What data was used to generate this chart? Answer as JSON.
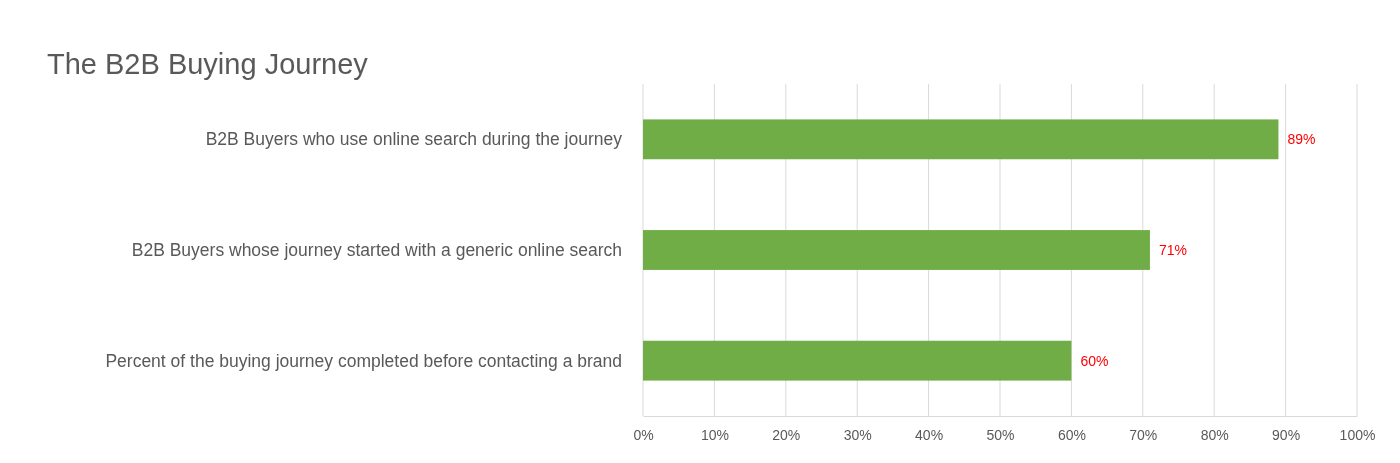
{
  "chart_data": {
    "type": "bar",
    "orientation": "horizontal",
    "title": "The B2B Buying Journey",
    "categories": [
      "B2B Buyers who use online search during the journey",
      "B2B Buyers whose journey started with a generic online search",
      "Percent of the buying journey completed before contacting a brand"
    ],
    "values": [
      89,
      71,
      60
    ],
    "color": "#70ad47",
    "value_labels": [
      "89%",
      "71%",
      "60%"
    ],
    "xlim": [
      0,
      100
    ],
    "xticks": [
      {
        "value": 0,
        "label": "0%"
      },
      {
        "value": 10,
        "label": "10%"
      },
      {
        "value": 20,
        "label": "20%"
      },
      {
        "value": 30,
        "label": "30%"
      },
      {
        "value": 40,
        "label": "40%"
      },
      {
        "value": 50,
        "label": "50%"
      },
      {
        "value": 60,
        "label": "60%"
      },
      {
        "value": 70,
        "label": "70%"
      },
      {
        "value": 80,
        "label": "80%"
      },
      {
        "value": 90,
        "label": "90%"
      },
      {
        "value": 100,
        "label": "100%"
      }
    ],
    "grid": "x"
  }
}
